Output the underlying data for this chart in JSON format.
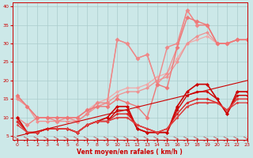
{
  "bg_color": "#cce8e8",
  "grid_color": "#aacccc",
  "line_color_dark": "#cc0000",
  "xlabel": "Vent moyen/en rafales ( km/h )",
  "xlim": [
    -0.5,
    23
  ],
  "ylim": [
    4,
    41
  ],
  "yticks": [
    5,
    10,
    15,
    20,
    25,
    30,
    35,
    40
  ],
  "xticks": [
    0,
    1,
    2,
    3,
    4,
    5,
    6,
    7,
    8,
    9,
    10,
    11,
    12,
    13,
    14,
    15,
    16,
    17,
    18,
    19,
    20,
    21,
    22,
    23
  ],
  "series": [
    {
      "x": [
        0,
        1,
        2,
        3,
        4,
        5,
        6,
        7,
        8,
        9,
        10,
        11,
        12,
        13,
        14,
        15,
        16,
        17,
        18,
        19,
        20,
        21,
        22,
        23
      ],
      "y": [
        15.5,
        13,
        10,
        10,
        10,
        10,
        10,
        12,
        14,
        15,
        17,
        18,
        18,
        19,
        21,
        22,
        26,
        30,
        31,
        32,
        30,
        30,
        31,
        31
      ],
      "color": "#f0aaaa",
      "lw": 0.9,
      "ms": 2.5
    },
    {
      "x": [
        0,
        1,
        2,
        3,
        4,
        5,
        6,
        7,
        8,
        9,
        10,
        11,
        12,
        13,
        14,
        15,
        16,
        17,
        18,
        19,
        20,
        21,
        22,
        23
      ],
      "y": [
        15.5,
        13,
        9,
        9,
        9,
        9,
        9,
        11,
        13,
        14,
        31,
        30,
        26,
        27,
        19,
        22,
        29,
        39,
        35,
        35,
        30,
        30,
        31,
        31
      ],
      "color": "#f09090",
      "lw": 0.9,
      "ms": 2.5
    },
    {
      "x": [
        0,
        1,
        2,
        3,
        4,
        5,
        6,
        7,
        8,
        9,
        10,
        11,
        12,
        13,
        14,
        15,
        16,
        17,
        18,
        19,
        20,
        21,
        22,
        23
      ],
      "y": [
        15,
        13,
        10,
        10,
        10,
        10,
        10,
        12,
        13,
        14,
        16,
        17,
        17,
        18,
        20,
        21,
        25,
        30,
        32,
        33,
        30,
        30,
        31,
        31
      ],
      "color": "#ee9090",
      "lw": 0.9,
      "ms": 2.5
    },
    {
      "x": [
        0,
        1,
        2,
        3,
        4,
        5,
        6,
        7,
        8,
        9,
        10,
        11,
        12,
        13,
        14,
        15,
        16,
        17,
        18,
        19,
        20,
        21,
        22,
        23
      ],
      "y": [
        10,
        8,
        10,
        10,
        9,
        10,
        9,
        11,
        14,
        14,
        31,
        30,
        26,
        27,
        19,
        29,
        30,
        39,
        35,
        35,
        30,
        30,
        31,
        31
      ],
      "color": "#ee8888",
      "lw": 1.0,
      "ms": 3.0
    },
    {
      "x": [
        0,
        1,
        2,
        3,
        4,
        5,
        6,
        7,
        8,
        9,
        10,
        11,
        12,
        13,
        14,
        15,
        16,
        17,
        18,
        19,
        20,
        21,
        22,
        23
      ],
      "y": [
        16,
        13,
        10,
        10,
        10,
        10,
        10,
        12,
        13,
        13,
        15,
        14,
        13,
        10,
        19,
        18,
        29,
        37,
        36,
        35,
        30,
        30,
        31,
        31
      ],
      "color": "#ee7777",
      "lw": 1.0,
      "ms": 3.0
    },
    {
      "x": [
        0,
        1,
        2,
        3,
        4,
        5,
        6,
        7,
        8,
        9,
        10,
        11,
        12,
        13,
        14,
        15,
        16,
        17,
        18,
        19,
        20,
        21,
        22,
        23
      ],
      "y": [
        10,
        6,
        6,
        7,
        7,
        7,
        6,
        8,
        9,
        10,
        13,
        13,
        7,
        6,
        6,
        6,
        13,
        17,
        19,
        19,
        15,
        11,
        17,
        17
      ],
      "color": "#cc0000",
      "lw": 1.2,
      "ms": 2.5
    },
    {
      "x": [
        0,
        1,
        2,
        3,
        4,
        5,
        6,
        7,
        8,
        9,
        10,
        11,
        12,
        13,
        14,
        15,
        16,
        17,
        18,
        19,
        20,
        21,
        22,
        23
      ],
      "y": [
        9,
        6,
        6,
        7,
        7,
        7,
        6,
        8,
        9,
        9,
        12,
        12,
        7,
        6,
        6,
        6,
        12,
        16,
        17,
        17,
        15,
        11,
        16,
        16
      ],
      "color": "#cc0000",
      "lw": 1.0,
      "ms": 2.0
    },
    {
      "x": [
        0,
        1,
        2,
        3,
        4,
        5,
        6,
        7,
        8,
        9,
        10,
        11,
        12,
        13,
        14,
        15,
        16,
        17,
        18,
        19,
        20,
        21,
        22,
        23
      ],
      "y": [
        9,
        6,
        6,
        7,
        7,
        7,
        6,
        8,
        9,
        9,
        11,
        11,
        8,
        7,
        6,
        7,
        11,
        14,
        15,
        15,
        14,
        12,
        15,
        15
      ],
      "color": "#dd2222",
      "lw": 1.0,
      "ms": 2.0
    },
    {
      "x": [
        0,
        1,
        2,
        3,
        4,
        5,
        6,
        7,
        8,
        9,
        10,
        11,
        12,
        13,
        14,
        15,
        16,
        17,
        18,
        19,
        20,
        21,
        22,
        23
      ],
      "y": [
        9,
        6,
        6,
        7,
        7,
        7,
        6,
        8,
        9,
        9,
        10,
        10,
        8,
        7,
        6,
        7,
        10,
        13,
        14,
        14,
        14,
        12,
        14,
        14
      ],
      "color": "#dd3333",
      "lw": 0.9,
      "ms": 1.8
    },
    {
      "x": [
        0,
        1,
        2,
        3,
        4,
        5,
        6,
        7,
        8,
        9,
        10,
        11,
        12,
        13,
        14,
        15,
        16,
        17,
        18,
        19,
        20,
        21,
        22,
        23
      ],
      "y": [
        8,
        6,
        6,
        7,
        7,
        7,
        6,
        8,
        9,
        9,
        10,
        10,
        8,
        7,
        6,
        7,
        10,
        13,
        14,
        14,
        14,
        12,
        15,
        15
      ],
      "color": "#dd4444",
      "lw": 0.9,
      "ms": 1.8
    },
    {
      "x": [
        0,
        23
      ],
      "y": [
        5,
        20
      ],
      "color": "#cc0000",
      "lw": 0.8,
      "ms": 0
    }
  ]
}
